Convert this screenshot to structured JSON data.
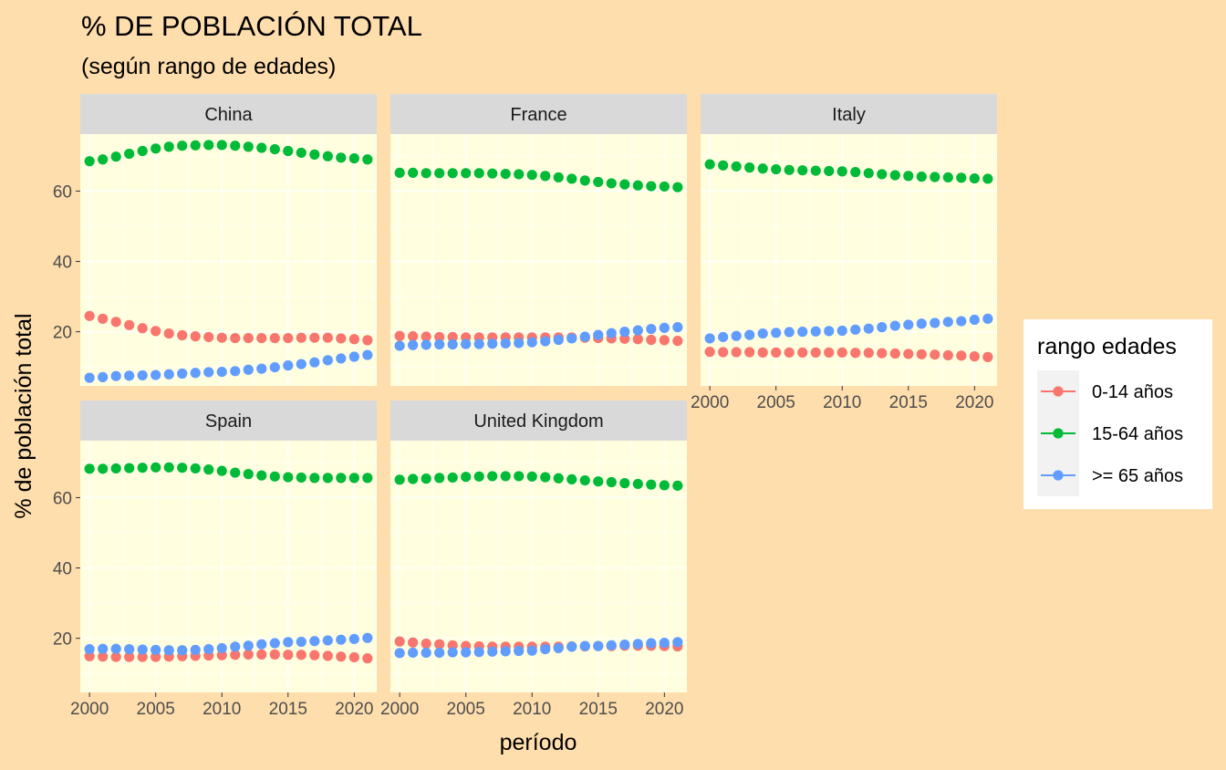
{
  "chart_data": {
    "type": "scatter",
    "title": "% DE POBLACIÓN TOTAL",
    "subtitle": "(según rango de edades)",
    "xlabel": "período",
    "ylabel": "% de población total",
    "xlim": [
      1999.3,
      2021.7
    ],
    "ylim": [
      4.6,
      76.2
    ],
    "x_ticks": [
      2000,
      2005,
      2010,
      2015,
      2020
    ],
    "y_ticks": [
      20,
      40,
      60
    ],
    "grid": true,
    "legend": {
      "title": "rango edades",
      "position": "right",
      "entries": [
        {
          "label": "0-14 años",
          "color": "#F8766D"
        },
        {
          "label": "15-64 años",
          "color": "#00BA38"
        },
        {
          "label": ">= 65 años",
          "color": "#619CFF"
        }
      ]
    },
    "years": [
      2000,
      2001,
      2002,
      2003,
      2004,
      2005,
      2006,
      2007,
      2008,
      2009,
      2010,
      2011,
      2012,
      2013,
      2014,
      2015,
      2016,
      2017,
      2018,
      2019,
      2020,
      2021
    ],
    "panels": [
      {
        "name": "China",
        "series": {
          "0-14 años": [
            24.5,
            23.7,
            22.8,
            21.9,
            21.0,
            20.2,
            19.5,
            19.0,
            18.7,
            18.5,
            18.3,
            18.2,
            18.2,
            18.2,
            18.2,
            18.2,
            18.3,
            18.3,
            18.3,
            18.1,
            17.9,
            17.6
          ],
          "15-64 años": [
            68.5,
            69.0,
            69.8,
            70.6,
            71.4,
            72.1,
            72.6,
            72.9,
            73.0,
            73.1,
            73.1,
            72.9,
            72.6,
            72.3,
            71.9,
            71.4,
            70.9,
            70.4,
            69.9,
            69.5,
            69.3,
            69.0
          ],
          ">= 65 años": [
            6.9,
            7.1,
            7.4,
            7.5,
            7.6,
            7.7,
            7.9,
            8.1,
            8.3,
            8.5,
            8.6,
            8.8,
            9.2,
            9.5,
            9.9,
            10.4,
            10.8,
            11.3,
            11.9,
            12.4,
            12.9,
            13.4
          ]
        }
      },
      {
        "name": "France",
        "series": {
          "0-14 años": [
            18.8,
            18.7,
            18.6,
            18.5,
            18.5,
            18.4,
            18.4,
            18.4,
            18.4,
            18.4,
            18.4,
            18.4,
            18.4,
            18.4,
            18.3,
            18.2,
            18.1,
            18.0,
            17.9,
            17.7,
            17.6,
            17.4
          ],
          "15-64 años": [
            65.2,
            65.2,
            65.1,
            65.1,
            65.1,
            65.1,
            65.1,
            65.0,
            64.9,
            64.8,
            64.6,
            64.3,
            63.9,
            63.5,
            63.0,
            62.6,
            62.2,
            61.9,
            61.6,
            61.4,
            61.3,
            61.1
          ],
          ">= 65 años": [
            16.0,
            16.2,
            16.3,
            16.4,
            16.4,
            16.5,
            16.5,
            16.6,
            16.7,
            16.8,
            17.0,
            17.3,
            17.7,
            18.1,
            18.6,
            19.1,
            19.6,
            20.0,
            20.4,
            20.8,
            21.1,
            21.3
          ]
        }
      },
      {
        "name": "Italy",
        "series": {
          "0-14 años": [
            14.3,
            14.2,
            14.2,
            14.2,
            14.1,
            14.1,
            14.1,
            14.1,
            14.1,
            14.1,
            14.1,
            14.0,
            14.0,
            13.9,
            13.8,
            13.7,
            13.6,
            13.5,
            13.3,
            13.2,
            13.0,
            12.8
          ],
          "15-64 años": [
            67.6,
            67.3,
            67.0,
            66.7,
            66.4,
            66.2,
            66.0,
            65.9,
            65.8,
            65.7,
            65.6,
            65.4,
            65.1,
            64.8,
            64.5,
            64.3,
            64.1,
            64.0,
            63.9,
            63.8,
            63.6,
            63.5
          ],
          ">= 65 años": [
            18.1,
            18.5,
            18.8,
            19.1,
            19.5,
            19.7,
            19.9,
            20.0,
            20.1,
            20.2,
            20.3,
            20.6,
            20.9,
            21.3,
            21.7,
            22.0,
            22.3,
            22.5,
            22.8,
            23.0,
            23.4,
            23.7
          ]
        }
      },
      {
        "name": "Spain",
        "series": {
          "0-14 años": [
            14.9,
            14.8,
            14.7,
            14.7,
            14.7,
            14.7,
            14.8,
            14.9,
            15.0,
            15.1,
            15.2,
            15.3,
            15.4,
            15.4,
            15.4,
            15.3,
            15.3,
            15.2,
            15.0,
            14.8,
            14.6,
            14.3
          ],
          "15-64 años": [
            68.2,
            68.2,
            68.3,
            68.4,
            68.5,
            68.6,
            68.6,
            68.5,
            68.3,
            68.0,
            67.6,
            67.1,
            66.7,
            66.3,
            66.0,
            65.8,
            65.7,
            65.6,
            65.6,
            65.6,
            65.6,
            65.6
          ],
          ">= 65 años": [
            16.9,
            17.0,
            17.0,
            16.9,
            16.8,
            16.7,
            16.6,
            16.6,
            16.7,
            16.9,
            17.2,
            17.6,
            17.9,
            18.3,
            18.6,
            18.9,
            19.0,
            19.2,
            19.4,
            19.6,
            19.8,
            20.1
          ]
        }
      },
      {
        "name": "United Kingdom",
        "series": {
          "0-14 años": [
            19.1,
            18.8,
            18.5,
            18.3,
            18.0,
            17.8,
            17.7,
            17.6,
            17.6,
            17.6,
            17.6,
            17.6,
            17.6,
            17.7,
            17.7,
            17.8,
            17.8,
            17.9,
            17.9,
            17.9,
            17.8,
            17.7
          ],
          "15-64 años": [
            65.1,
            65.3,
            65.4,
            65.6,
            65.7,
            65.9,
            66.0,
            66.1,
            66.1,
            66.1,
            66.0,
            65.8,
            65.5,
            65.2,
            64.9,
            64.6,
            64.4,
            64.1,
            63.9,
            63.7,
            63.5,
            63.4
          ],
          ">= 65 años": [
            15.8,
            15.9,
            15.9,
            15.9,
            16.0,
            16.0,
            16.1,
            16.2,
            16.3,
            16.4,
            16.5,
            16.9,
            17.2,
            17.6,
            17.8,
            17.8,
            18.0,
            18.2,
            18.4,
            18.6,
            18.7,
            18.9
          ]
        }
      }
    ]
  }
}
